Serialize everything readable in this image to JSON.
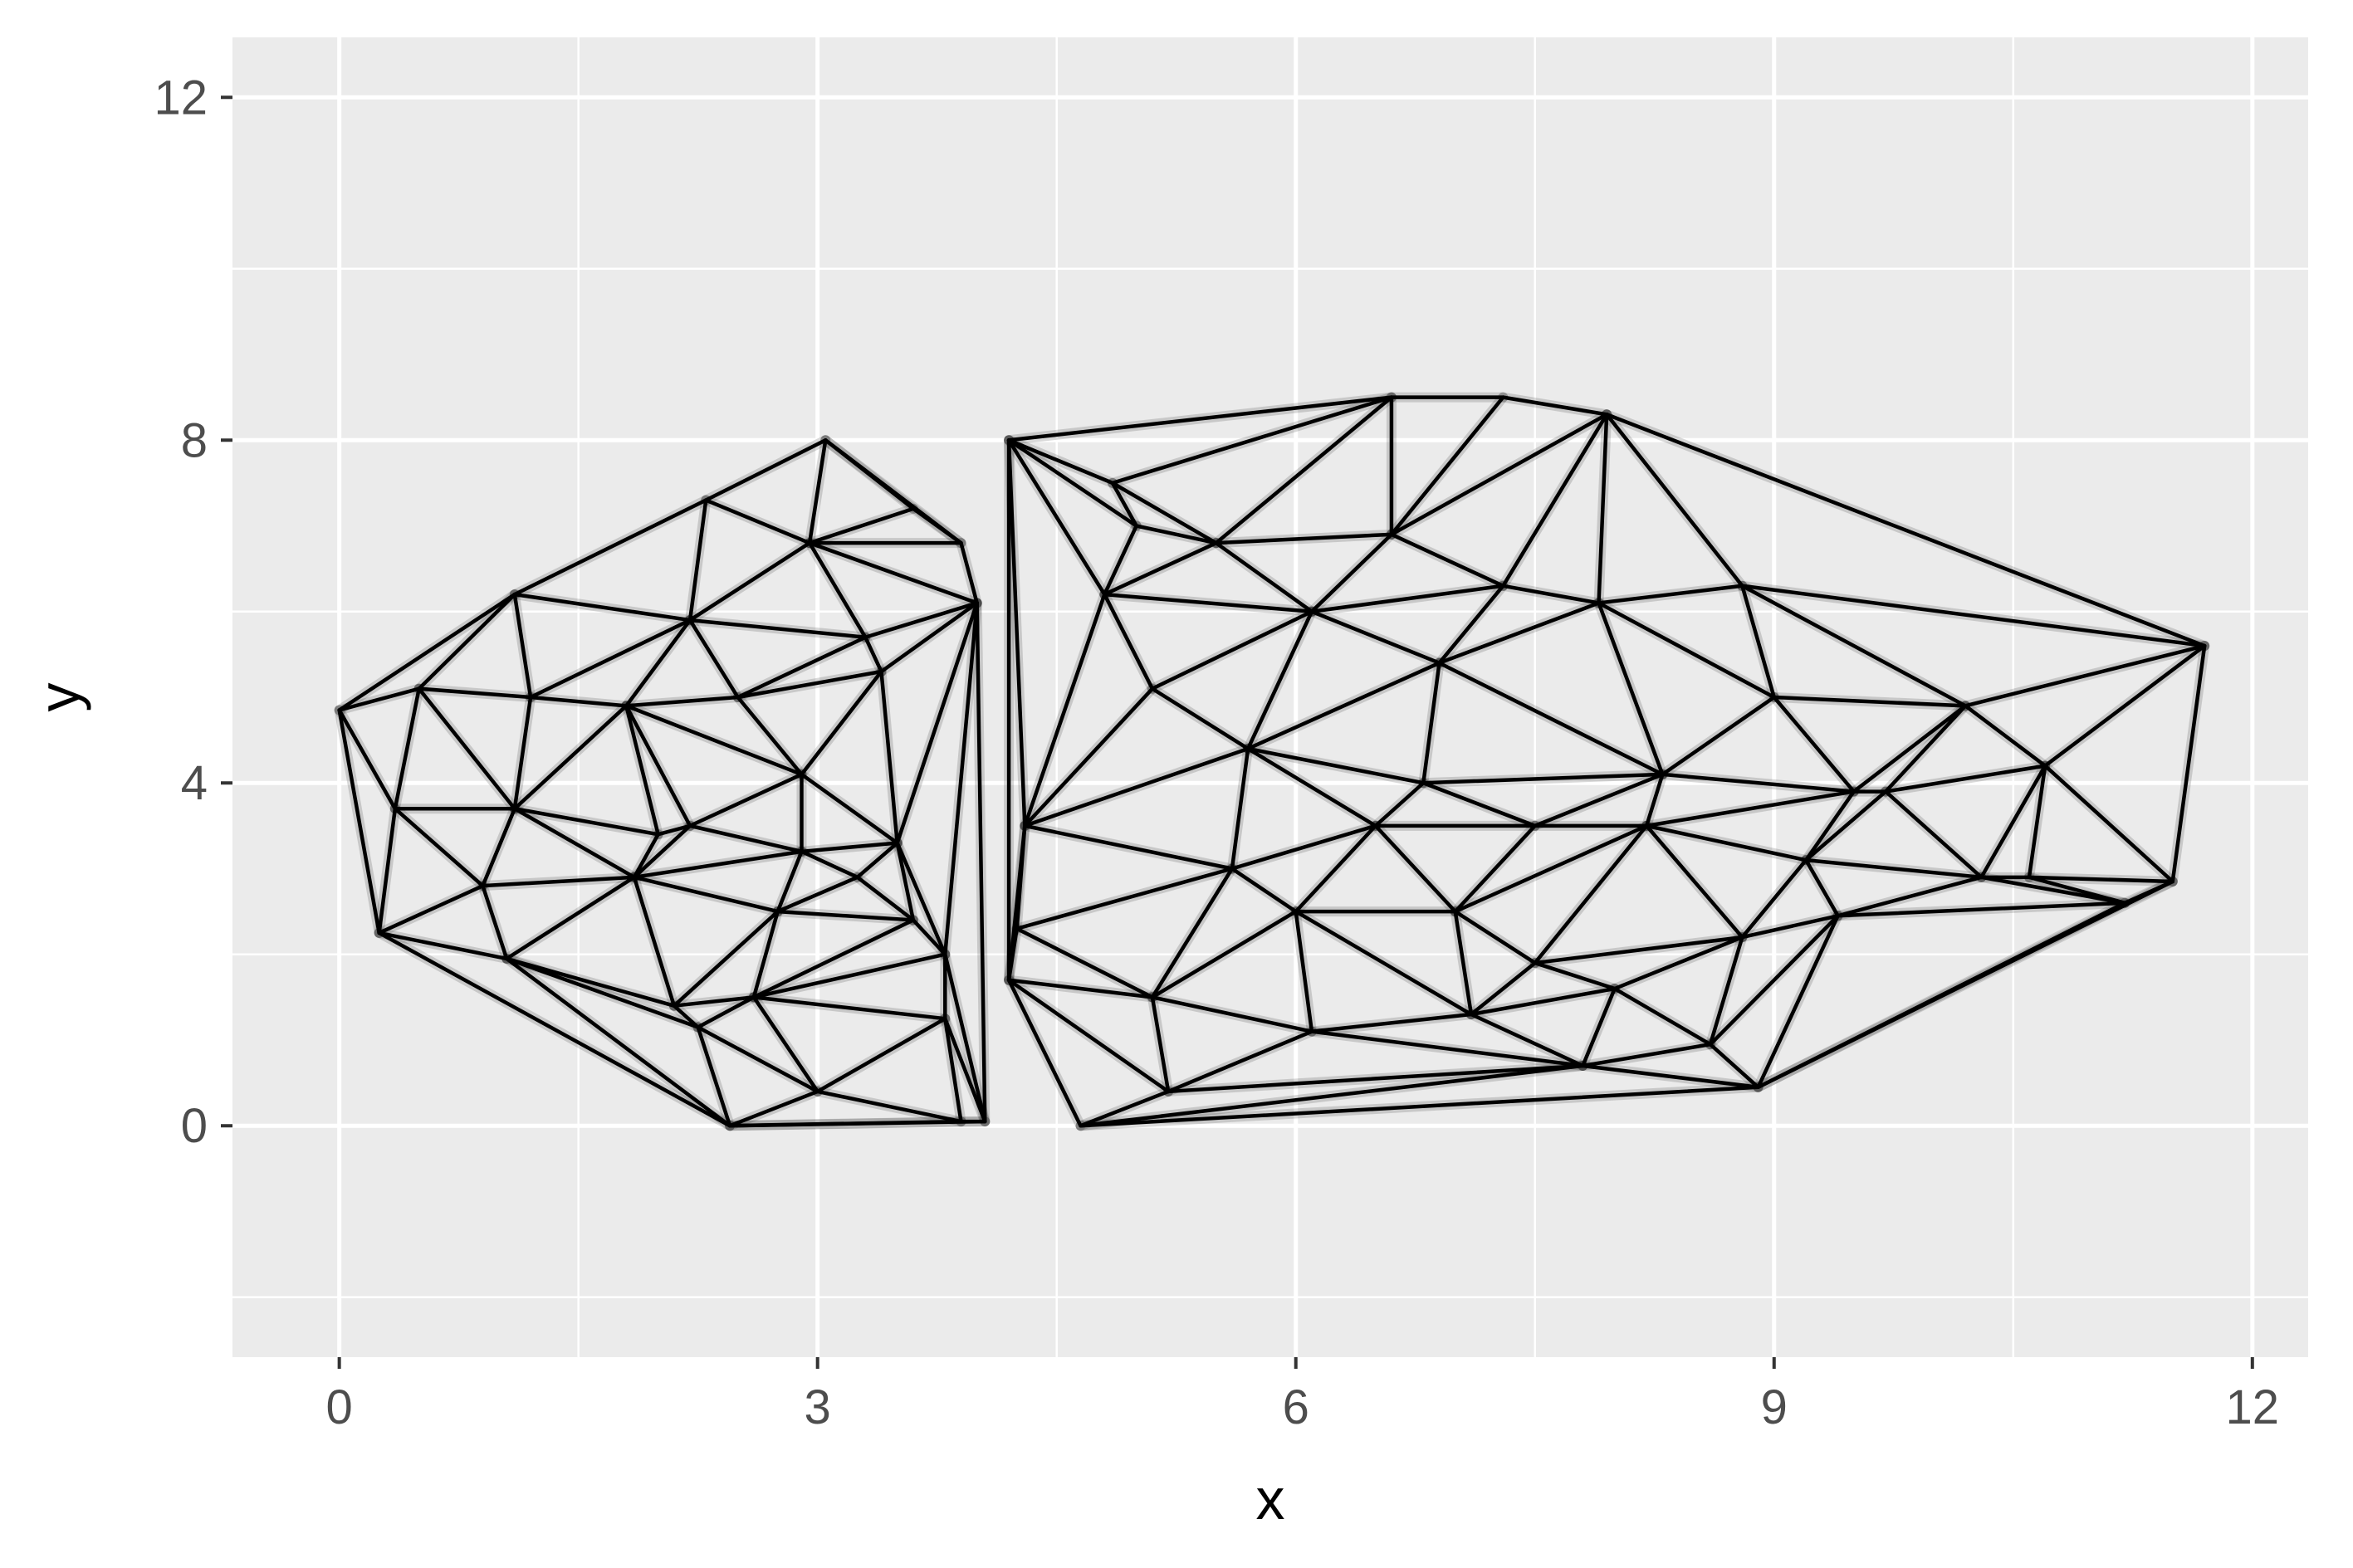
{
  "chart_data": {
    "type": "triangulation",
    "xlabel": "x",
    "ylabel": "y",
    "xlim": [
      -0.67,
      12.35
    ],
    "ylim": [
      -2.7,
      12.7
    ],
    "xticks": [
      0,
      3,
      6,
      9,
      12
    ],
    "yticks": [
      0,
      4,
      8,
      12
    ],
    "xtick_labels": [
      "0",
      "3",
      "6",
      "9",
      "12"
    ],
    "ytick_labels": [
      "0",
      "4",
      "8",
      "12"
    ],
    "grid": true,
    "colors": {
      "panel": "#ebebeb",
      "grid": "#ffffff",
      "edge": "#000000"
    },
    "clusters": [
      {
        "name": "left",
        "points": [
          [
            0.0,
            4.85
          ],
          [
            0.35,
            3.7
          ],
          [
            0.25,
            2.25
          ],
          [
            0.5,
            5.1
          ],
          [
            1.1,
            6.2
          ],
          [
            1.2,
            5.0
          ],
          [
            1.1,
            3.7
          ],
          [
            0.9,
            2.8
          ],
          [
            1.05,
            1.95
          ],
          [
            2.3,
            7.3
          ],
          [
            3.05,
            8.0
          ],
          [
            3.6,
            7.2
          ],
          [
            3.9,
            6.8
          ],
          [
            4.0,
            6.1
          ],
          [
            2.95,
            6.8
          ],
          [
            1.8,
            4.9
          ],
          [
            2.2,
            5.9
          ],
          [
            2.0,
            3.4
          ],
          [
            2.2,
            3.5
          ],
          [
            1.85,
            2.9
          ],
          [
            2.1,
            1.4
          ],
          [
            2.25,
            1.15
          ],
          [
            2.45,
            0.0
          ],
          [
            2.6,
            1.5
          ],
          [
            2.75,
            2.5
          ],
          [
            2.9,
            3.2
          ],
          [
            3.25,
            2.9
          ],
          [
            3.4,
            5.3
          ],
          [
            3.5,
            3.3
          ],
          [
            3.6,
            2.4
          ],
          [
            3.8,
            2.0
          ],
          [
            3.8,
            1.25
          ],
          [
            3.9,
            0.05
          ],
          [
            4.05,
            0.05
          ],
          [
            3.0,
            0.4
          ],
          [
            3.3,
            5.7
          ],
          [
            2.9,
            4.1
          ],
          [
            2.5,
            5.0
          ]
        ]
      },
      {
        "name": "right",
        "points": [
          [
            4.2,
            8.0
          ],
          [
            4.25,
            2.3
          ],
          [
            4.2,
            1.7
          ],
          [
            4.3,
            3.5
          ],
          [
            4.65,
            0.0
          ],
          [
            4.8,
            6.2
          ],
          [
            4.85,
            7.5
          ],
          [
            5.1,
            5.1
          ],
          [
            5.1,
            1.5
          ],
          [
            5.2,
            0.4
          ],
          [
            5.5,
            6.8
          ],
          [
            5.6,
            3.0
          ],
          [
            5.7,
            4.4
          ],
          [
            6.0,
            2.5
          ],
          [
            6.1,
            1.1
          ],
          [
            6.5,
            3.5
          ],
          [
            6.6,
            8.5
          ],
          [
            6.6,
            6.9
          ],
          [
            6.8,
            4.0
          ],
          [
            6.9,
            5.4
          ],
          [
            7.0,
            2.5
          ],
          [
            7.1,
            1.3
          ],
          [
            7.3,
            8.5
          ],
          [
            7.3,
            6.3
          ],
          [
            7.5,
            3.5
          ],
          [
            7.5,
            1.9
          ],
          [
            7.8,
            0.7
          ],
          [
            7.9,
            6.1
          ],
          [
            7.95,
            8.3
          ],
          [
            8.0,
            1.6
          ],
          [
            8.2,
            3.5
          ],
          [
            8.3,
            4.1
          ],
          [
            8.8,
            6.3
          ],
          [
            8.6,
            0.95
          ],
          [
            8.9,
            0.45
          ],
          [
            9.0,
            5.0
          ],
          [
            9.4,
            2.45
          ],
          [
            9.5,
            3.9
          ],
          [
            9.7,
            3.9
          ],
          [
            10.2,
            4.9
          ],
          [
            10.3,
            2.9
          ],
          [
            10.6,
            2.9
          ],
          [
            10.7,
            4.2
          ],
          [
            11.2,
            2.6
          ],
          [
            11.5,
            2.85
          ],
          [
            11.7,
            5.6
          ],
          [
            5.0,
            7.0
          ],
          [
            6.1,
            6.0
          ],
          [
            8.8,
            2.2
          ],
          [
            9.2,
            3.1
          ]
        ]
      }
    ]
  }
}
